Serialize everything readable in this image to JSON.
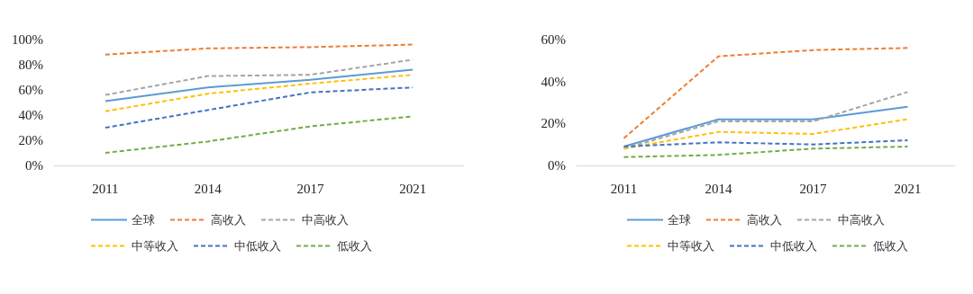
{
  "chart_data": [
    {
      "type": "line",
      "categories": [
        "2011",
        "2014",
        "2017",
        "2021"
      ],
      "ylim": [
        0,
        100
      ],
      "yticks": [
        {
          "value": 0,
          "label": "0%"
        },
        {
          "value": 20,
          "label": "20%"
        },
        {
          "value": 40,
          "label": "40%"
        },
        {
          "value": 60,
          "label": "60%"
        },
        {
          "value": 80,
          "label": "80%"
        },
        {
          "value": 100,
          "label": "100%"
        }
      ],
      "grid": false,
      "legend": "bottom",
      "marker": "none",
      "line_style": "dashed",
      "series": [
        {
          "name": "全球",
          "color": "#5b9bd5",
          "values": [
            51,
            62,
            68,
            76
          ],
          "line_style": "solid"
        },
        {
          "name": "高收入",
          "color": "#ed7d31",
          "values": [
            88,
            93,
            94,
            96
          ]
        },
        {
          "name": "中高收入",
          "color": "#a5a5a5",
          "values": [
            56,
            71,
            72,
            84
          ]
        },
        {
          "name": "中等收入",
          "color": "#ffc000",
          "values": [
            43,
            57,
            65,
            72
          ]
        },
        {
          "name": "中低收入",
          "color": "#4472c4",
          "values": [
            30,
            44,
            58,
            62
          ]
        },
        {
          "name": "低收入",
          "color": "#70ad47",
          "values": [
            10,
            19,
            31,
            39
          ]
        }
      ]
    },
    {
      "type": "line",
      "categories": [
        "2011",
        "2014",
        "2017",
        "2021"
      ],
      "ylim": [
        0,
        60
      ],
      "yticks": [
        {
          "value": 0,
          "label": "0%"
        },
        {
          "value": 20,
          "label": "20%"
        },
        {
          "value": 40,
          "label": "40%"
        },
        {
          "value": 60,
          "label": "60%"
        }
      ],
      "grid": false,
      "legend": "bottom",
      "marker": "none",
      "line_style": "dashed",
      "series": [
        {
          "name": "全球",
          "color": "#5b9bd5",
          "values": [
            9,
            22,
            22,
            28
          ],
          "line_style": "solid"
        },
        {
          "name": "高收入",
          "color": "#ed7d31",
          "values": [
            13,
            52,
            55,
            56
          ]
        },
        {
          "name": "中高收入",
          "color": "#a5a5a5",
          "values": [
            8,
            21,
            21,
            35
          ]
        },
        {
          "name": "中等收入",
          "color": "#ffc000",
          "values": [
            8,
            16,
            15,
            22
          ]
        },
        {
          "name": "中低收入",
          "color": "#4472c4",
          "values": [
            9,
            11,
            10,
            12
          ]
        },
        {
          "name": "低收入",
          "color": "#70ad47",
          "values": [
            4,
            5,
            8,
            9
          ]
        }
      ]
    }
  ]
}
